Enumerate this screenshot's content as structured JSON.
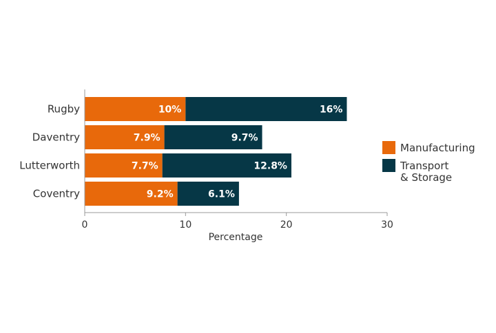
{
  "chart_data": {
    "type": "bar",
    "orientation": "horizontal",
    "stacked": true,
    "categories": [
      "Rugby",
      "Daventry",
      "Lutterworth",
      "Coventry"
    ],
    "series": [
      {
        "name": "Manufacturing",
        "color": "#E8690B",
        "values": [
          10,
          7.9,
          7.7,
          9.2
        ],
        "labels": [
          "10%",
          "7.9%",
          "7.7%",
          "9.2%"
        ]
      },
      {
        "name": "Transport & Storage",
        "legend_lines": [
          "Transport",
          "& Storage"
        ],
        "color": "#063746",
        "values": [
          16,
          9.7,
          12.8,
          6.1
        ],
        "labels": [
          "16%",
          "9.7%",
          "12.8%",
          "6.1%"
        ]
      }
    ],
    "xlabel": "Percentage",
    "xlim": [
      0,
      30
    ],
    "xticks": [
      "0",
      "10",
      "20",
      "30"
    ],
    "grid": false,
    "legend_position": "right"
  }
}
